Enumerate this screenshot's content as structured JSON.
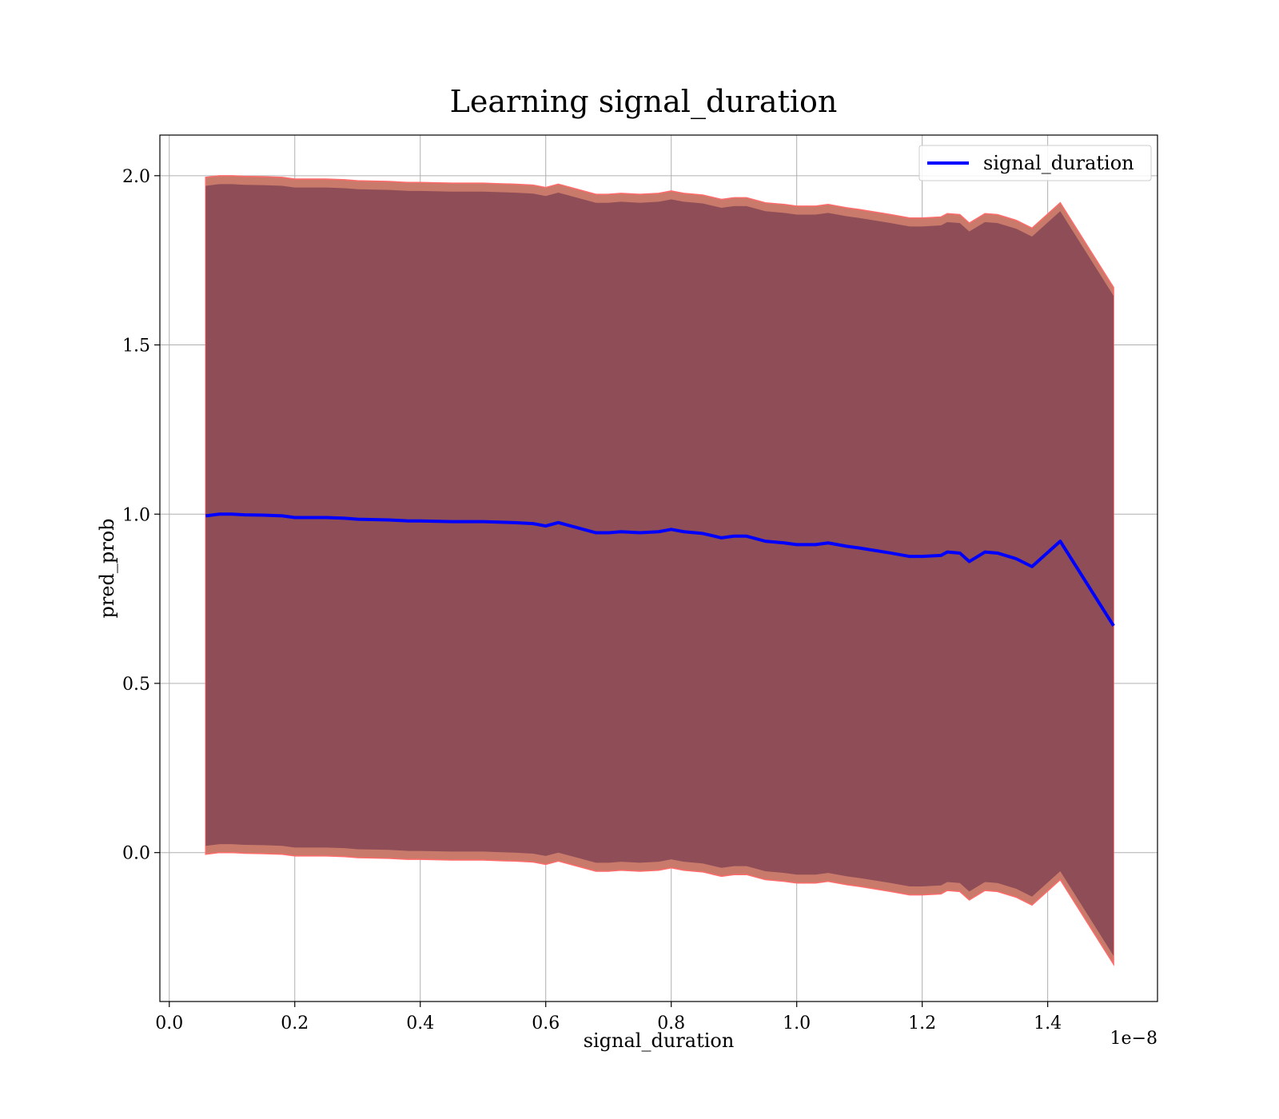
{
  "chart_data": {
    "type": "area",
    "title": "Learning signal_duration",
    "xlabel": "signal_duration",
    "ylabel": "pred_prob",
    "x_offset_label": "1e−8",
    "xlim": [
      -0.015,
      1.575
    ],
    "ylim": [
      -0.44,
      2.12
    ],
    "x_ticks": [
      0.0,
      0.2,
      0.4,
      0.6,
      0.8,
      1.0,
      1.2,
      1.4
    ],
    "x_tick_labels": [
      "0.0",
      "0.2",
      "0.4",
      "0.6",
      "0.8",
      "1.0",
      "1.2",
      "1.4"
    ],
    "y_ticks": [
      0.0,
      0.5,
      1.0,
      1.5,
      2.0
    ],
    "y_tick_labels": [
      "0.0",
      "0.5",
      "1.0",
      "1.5",
      "2.0"
    ],
    "grid": true,
    "legend_position": "top-right",
    "colors": {
      "line": "#0000ff",
      "inner_band": "#7a3f52",
      "outer_band": "#c97a6a",
      "band_edge": "#ff6a6a"
    },
    "series": [
      {
        "name": "signal_duration",
        "x": [
          0.058,
          0.08,
          0.1,
          0.12,
          0.15,
          0.18,
          0.2,
          0.25,
          0.28,
          0.3,
          0.35,
          0.38,
          0.4,
          0.45,
          0.5,
          0.53,
          0.55,
          0.58,
          0.6,
          0.62,
          0.65,
          0.68,
          0.7,
          0.72,
          0.75,
          0.78,
          0.8,
          0.82,
          0.85,
          0.88,
          0.9,
          0.92,
          0.95,
          0.98,
          1.0,
          1.03,
          1.05,
          1.08,
          1.1,
          1.15,
          1.18,
          1.2,
          1.23,
          1.24,
          1.26,
          1.275,
          1.3,
          1.32,
          1.35,
          1.375,
          1.42,
          1.505
        ],
        "y": [
          0.995,
          1.0,
          1.0,
          0.998,
          0.997,
          0.995,
          0.99,
          0.99,
          0.988,
          0.985,
          0.983,
          0.98,
          0.98,
          0.978,
          0.978,
          0.976,
          0.975,
          0.972,
          0.965,
          0.975,
          0.96,
          0.945,
          0.945,
          0.948,
          0.945,
          0.948,
          0.955,
          0.948,
          0.943,
          0.93,
          0.935,
          0.935,
          0.92,
          0.915,
          0.91,
          0.91,
          0.915,
          0.905,
          0.9,
          0.885,
          0.875,
          0.875,
          0.878,
          0.888,
          0.885,
          0.86,
          0.888,
          0.885,
          0.868,
          0.845,
          0.92,
          0.67
        ],
        "inner_half_width": [
          0.975,
          0.975,
          0.975,
          0.975,
          0.975,
          0.975,
          0.975,
          0.975,
          0.975,
          0.975,
          0.975,
          0.975,
          0.975,
          0.975,
          0.975,
          0.975,
          0.975,
          0.975,
          0.975,
          0.975,
          0.975,
          0.975,
          0.975,
          0.975,
          0.975,
          0.975,
          0.975,
          0.975,
          0.975,
          0.975,
          0.975,
          0.975,
          0.975,
          0.975,
          0.975,
          0.975,
          0.975,
          0.975,
          0.975,
          0.975,
          0.975,
          0.975,
          0.975,
          0.975,
          0.975,
          0.975,
          0.975,
          0.975,
          0.975,
          0.975,
          0.975,
          0.975
        ],
        "outer_half_width": [
          1.0,
          1.0,
          1.0,
          1.0,
          1.0,
          1.0,
          1.0,
          1.0,
          1.0,
          1.0,
          1.0,
          1.0,
          1.0,
          1.0,
          1.0,
          1.0,
          1.0,
          1.0,
          1.0,
          1.0,
          1.0,
          1.0,
          1.0,
          1.0,
          1.0,
          1.0,
          1.0,
          1.0,
          1.0,
          1.0,
          1.0,
          1.0,
          1.0,
          1.0,
          1.0,
          1.0,
          1.0,
          1.0,
          1.0,
          1.0,
          1.0,
          1.0,
          1.0,
          1.0,
          1.0,
          1.0,
          1.0,
          1.0,
          1.0,
          1.0,
          1.0,
          1.0
        ]
      }
    ]
  }
}
